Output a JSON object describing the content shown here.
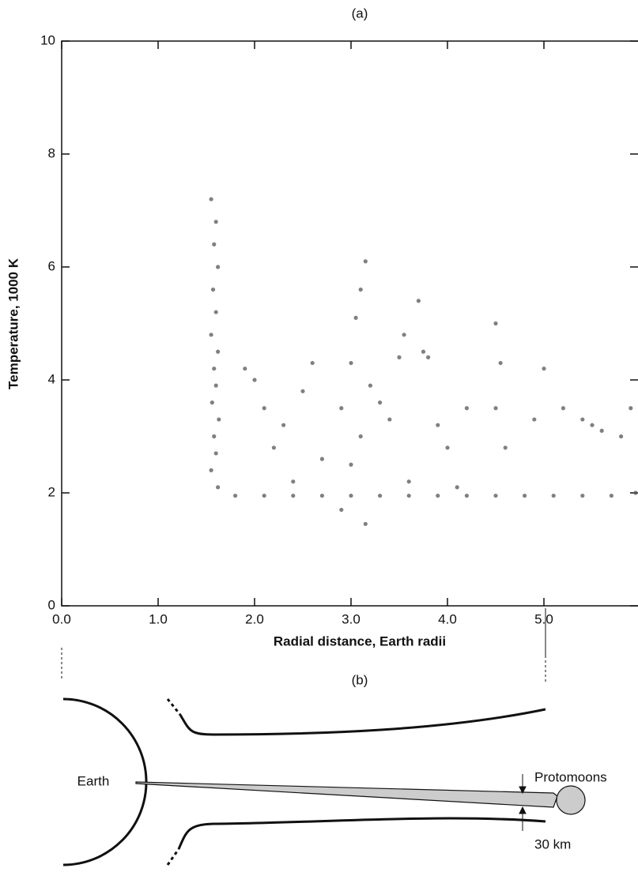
{
  "chart_data": {
    "type": "scatter",
    "title": "(a)",
    "xlabel": "Radial distance, Earth radii",
    "ylabel": "Temperature, 1000 K",
    "xlim": [
      0,
      6
    ],
    "ylim": [
      0,
      10
    ],
    "xticks": [
      {
        "value": 0,
        "label": "0.0"
      },
      {
        "value": 1,
        "label": "1.0"
      },
      {
        "value": 2,
        "label": "2.0"
      },
      {
        "value": 3,
        "label": "3.0"
      },
      {
        "value": 4,
        "label": "4.0"
      },
      {
        "value": 5,
        "label": "5.0"
      }
    ],
    "yticks": [
      0,
      2,
      4,
      6,
      8,
      10
    ],
    "color": "#555555",
    "x": [
      1.55,
      1.6,
      1.58,
      1.62,
      1.57,
      1.6,
      1.55,
      1.62,
      1.58,
      1.6,
      1.56,
      1.63,
      1.58,
      1.6,
      1.55,
      1.62,
      1.8,
      2.1,
      2.4,
      2.7,
      3.0,
      3.3,
      3.6,
      3.9,
      4.2,
      4.5,
      4.8,
      5.1,
      5.4,
      5.7,
      5.95,
      1.9,
      2.0,
      2.1,
      2.3,
      2.5,
      2.6,
      2.2,
      2.7,
      2.9,
      3.0,
      3.05,
      3.1,
      3.15,
      3.2,
      3.1,
      3.0,
      3.3,
      3.4,
      3.5,
      3.55,
      3.7,
      3.75,
      3.8,
      3.9,
      4.0,
      4.2,
      4.5,
      4.55,
      4.5,
      4.6,
      4.9,
      5.0,
      5.2,
      5.4,
      5.5,
      5.6,
      5.8,
      5.9,
      2.9,
      3.15,
      2.4,
      3.6,
      4.1
    ],
    "values": [
      7.2,
      6.8,
      6.4,
      6.0,
      5.6,
      5.2,
      4.8,
      4.5,
      4.2,
      3.9,
      3.6,
      3.3,
      3.0,
      2.7,
      2.4,
      2.1,
      1.95,
      1.95,
      1.95,
      1.95,
      1.95,
      1.95,
      1.95,
      1.95,
      1.95,
      1.95,
      1.95,
      1.95,
      1.95,
      1.95,
      2.0,
      4.2,
      4.0,
      3.5,
      3.2,
      3.8,
      4.3,
      2.8,
      2.6,
      3.5,
      4.3,
      5.1,
      5.6,
      6.1,
      3.9,
      3.0,
      2.5,
      3.6,
      3.3,
      4.4,
      4.8,
      5.4,
      4.5,
      4.4,
      3.2,
      2.8,
      3.5,
      5.0,
      4.3,
      3.5,
      2.8,
      3.3,
      4.2,
      3.5,
      3.3,
      3.2,
      3.1,
      3.0,
      3.5,
      1.7,
      1.45,
      2.2,
      2.2,
      2.1
    ]
  },
  "diagram": {
    "label": "(b)",
    "earth": "Earth",
    "protomoons": "Protomoons",
    "gap": "30 km"
  }
}
